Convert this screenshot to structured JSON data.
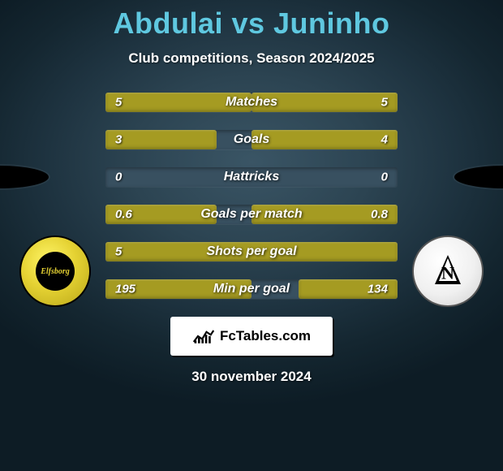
{
  "title": "Abdulai vs Juninho",
  "title_color": "#5fc8e0",
  "subtitle": "Club competitions, Season 2024/2025",
  "subtitle_color": "#ffffff",
  "date": "30 november 2024",
  "footer_brand": "FcTables.com",
  "bar_track_color": "#385060",
  "bar_fill_color": "#a59b22",
  "left_team": {
    "name": "Elfsborg",
    "badge_letter": "Elfsborg"
  },
  "right_team": {
    "name": "Neftchi",
    "badge_letter": "N"
  },
  "stats": [
    {
      "label": "Matches",
      "left_value": "5",
      "right_value": "5",
      "left_pct": 50,
      "right_pct": 50
    },
    {
      "label": "Goals",
      "left_value": "3",
      "right_value": "4",
      "left_pct": 38,
      "right_pct": 50
    },
    {
      "label": "Hattricks",
      "left_value": "0",
      "right_value": "0",
      "left_pct": 0,
      "right_pct": 0
    },
    {
      "label": "Goals per match",
      "left_value": "0.6",
      "right_value": "0.8",
      "left_pct": 38,
      "right_pct": 50
    },
    {
      "label": "Shots per goal",
      "left_value": "5",
      "right_value": "",
      "left_pct": 100,
      "right_pct": 0
    },
    {
      "label": "Min per goal",
      "left_value": "195",
      "right_value": "134",
      "left_pct": 50,
      "right_pct": 34
    }
  ]
}
